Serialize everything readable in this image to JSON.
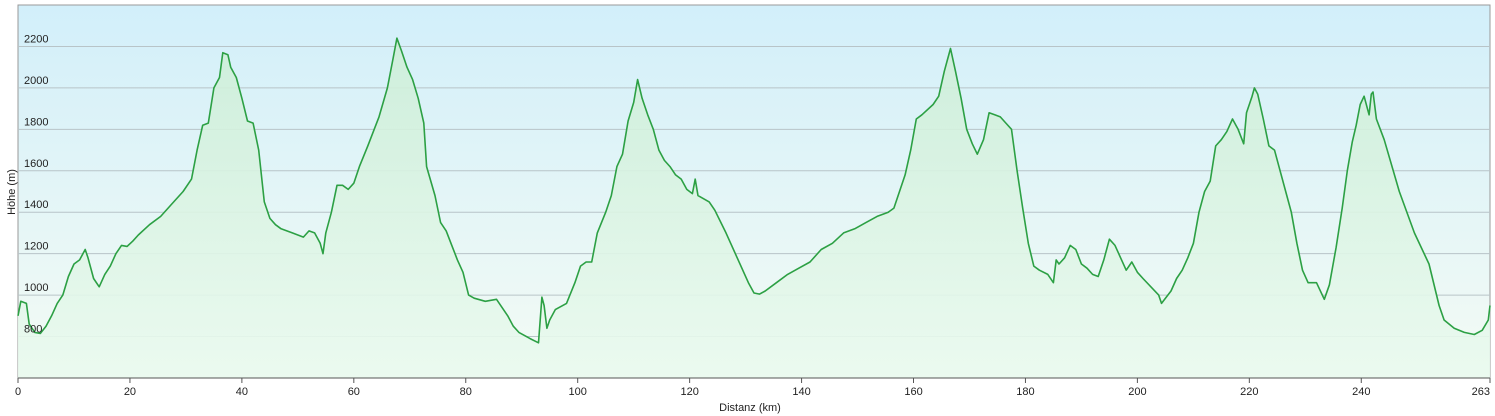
{
  "chart_data": {
    "type": "area",
    "xlabel": "Distanz  (km)",
    "ylabel": "Höhe (m)",
    "color": "#2ca044",
    "x": [
      0,
      0.5,
      1.5,
      2,
      3,
      4,
      5,
      6,
      7,
      8,
      9,
      10,
      11,
      12,
      12.5,
      13.5,
      14.5,
      15.5,
      16.5,
      17.5,
      18.5,
      19.5,
      20.5,
      21.5,
      23.5,
      25.5,
      27.5,
      29.5,
      31,
      32,
      33,
      34,
      35,
      36,
      36.6,
      37.5,
      38,
      39,
      40,
      41,
      42,
      43,
      44,
      45,
      46,
      47,
      49,
      51,
      52,
      53,
      54,
      54.5,
      55,
      56,
      57,
      58,
      59,
      60,
      61,
      62.5,
      64.5,
      66,
      67,
      67.7,
      68.5,
      69.5,
      70.5,
      71.5,
      72.5,
      73,
      74.5,
      75.5,
      76.5,
      77.5,
      78.5,
      79.5,
      80.5,
      81.5,
      83.5,
      85.5,
      87.5,
      88.5,
      89.5,
      91.5,
      93,
      93.6,
      94,
      94.5,
      95,
      96,
      98,
      99.5,
      100.5,
      101.5,
      102.5,
      103.5,
      105,
      106,
      107,
      108,
      109,
      110,
      110.7,
      111.5,
      112.5,
      113.5,
      114.5,
      115.5,
      116.5,
      117.5,
      118.5,
      119.5,
      120.5,
      121,
      121.5,
      123.5,
      124.5,
      126.5,
      128.5,
      130.5,
      131.5,
      132.5,
      133.5,
      135.5,
      137.5,
      139.5,
      141.5,
      143.5,
      145.5,
      147.5,
      149.5,
      151.5,
      153.5,
      155.5,
      156.5,
      157.5,
      158.5,
      159.5,
      160.5,
      161.5,
      163.5,
      164.5,
      165.5,
      166.6,
      167.5,
      168.5,
      169.5,
      170.5,
      171.4,
      172.5,
      173.5,
      174.5,
      175.5,
      176.5,
      177.5,
      178.5,
      179.5,
      180.5,
      181.5,
      182.5,
      184,
      185,
      185.5,
      186,
      187,
      188,
      189,
      190,
      191,
      192,
      193,
      194,
      195,
      196,
      197,
      198,
      199,
      200,
      201,
      203.8,
      204.3,
      206,
      207,
      208,
      209,
      210,
      211,
      212,
      213,
      214,
      215,
      216,
      217,
      218,
      219,
      219.5,
      220.5,
      220.9,
      221.5,
      222.5,
      223.5,
      224.5,
      225.5,
      226.5,
      227.5,
      228.5,
      229.5,
      230.5,
      232,
      233.4,
      234.3,
      235.5,
      236.6,
      237.5,
      238.4,
      239.1,
      239.8,
      240.5,
      241.1,
      241.4,
      241.8,
      242.1,
      242.7,
      244.1,
      246.8,
      249.5,
      252.1,
      253.9,
      254.8,
      256.6,
      258.4,
      260.2,
      261.6,
      262.7,
      263
    ],
    "values": [
      900,
      970,
      960,
      860,
      820,
      815,
      850,
      900,
      960,
      1000,
      1090,
      1150,
      1170,
      1220,
      1180,
      1080,
      1040,
      1100,
      1140,
      1200,
      1240,
      1235,
      1260,
      1290,
      1340,
      1380,
      1440,
      1500,
      1560,
      1700,
      1820,
      1830,
      2000,
      2050,
      2170,
      2160,
      2100,
      2050,
      1950,
      1840,
      1830,
      1700,
      1450,
      1370,
      1340,
      1320,
      1300,
      1280,
      1310,
      1300,
      1250,
      1200,
      1300,
      1400,
      1530,
      1530,
      1510,
      1540,
      1620,
      1720,
      1860,
      2000,
      2140,
      2240,
      2180,
      2100,
      2040,
      1950,
      1830,
      1620,
      1480,
      1350,
      1310,
      1240,
      1170,
      1110,
      1000,
      985,
      970,
      980,
      900,
      850,
      820,
      790,
      770,
      990,
      950,
      840,
      880,
      930,
      960,
      1060,
      1140,
      1160,
      1160,
      1300,
      1400,
      1480,
      1620,
      1680,
      1840,
      1930,
      2040,
      1950,
      1870,
      1800,
      1700,
      1650,
      1620,
      1580,
      1560,
      1510,
      1490,
      1560,
      1480,
      1450,
      1410,
      1300,
      1180,
      1060,
      1010,
      1005,
      1020,
      1060,
      1100,
      1130,
      1160,
      1220,
      1250,
      1300,
      1320,
      1350,
      1380,
      1400,
      1420,
      1500,
      1580,
      1700,
      1850,
      1870,
      1920,
      1960,
      2080,
      2190,
      2080,
      1950,
      1800,
      1730,
      1680,
      1750,
      1880,
      1870,
      1860,
      1830,
      1800,
      1600,
      1420,
      1250,
      1140,
      1120,
      1100,
      1060,
      1170,
      1150,
      1180,
      1240,
      1220,
      1150,
      1130,
      1100,
      1090,
      1170,
      1270,
      1240,
      1180,
      1120,
      1160,
      1110,
      1080,
      1000,
      960,
      1020,
      1080,
      1120,
      1180,
      1250,
      1400,
      1500,
      1550,
      1720,
      1750,
      1790,
      1850,
      1800,
      1730,
      1880,
      1960,
      2000,
      1970,
      1850,
      1720,
      1700,
      1600,
      1500,
      1400,
      1250,
      1120,
      1060,
      1060,
      980,
      1050,
      1230,
      1420,
      1600,
      1740,
      1820,
      1920,
      1960,
      1900,
      1870,
      1970,
      1980,
      1850,
      1750,
      1500,
      1300,
      1150,
      950,
      880,
      840,
      820,
      810,
      830,
      880,
      950
    ],
    "xlim": [
      0,
      263
    ],
    "ylim": [
      600,
      2400
    ],
    "xticks": [
      0,
      20,
      40,
      60,
      80,
      100,
      120,
      140,
      160,
      180,
      200,
      220,
      240,
      263
    ],
    "yticks": [
      800,
      1000,
      1200,
      1400,
      1600,
      1800,
      2000,
      2200
    ],
    "grid": true
  }
}
